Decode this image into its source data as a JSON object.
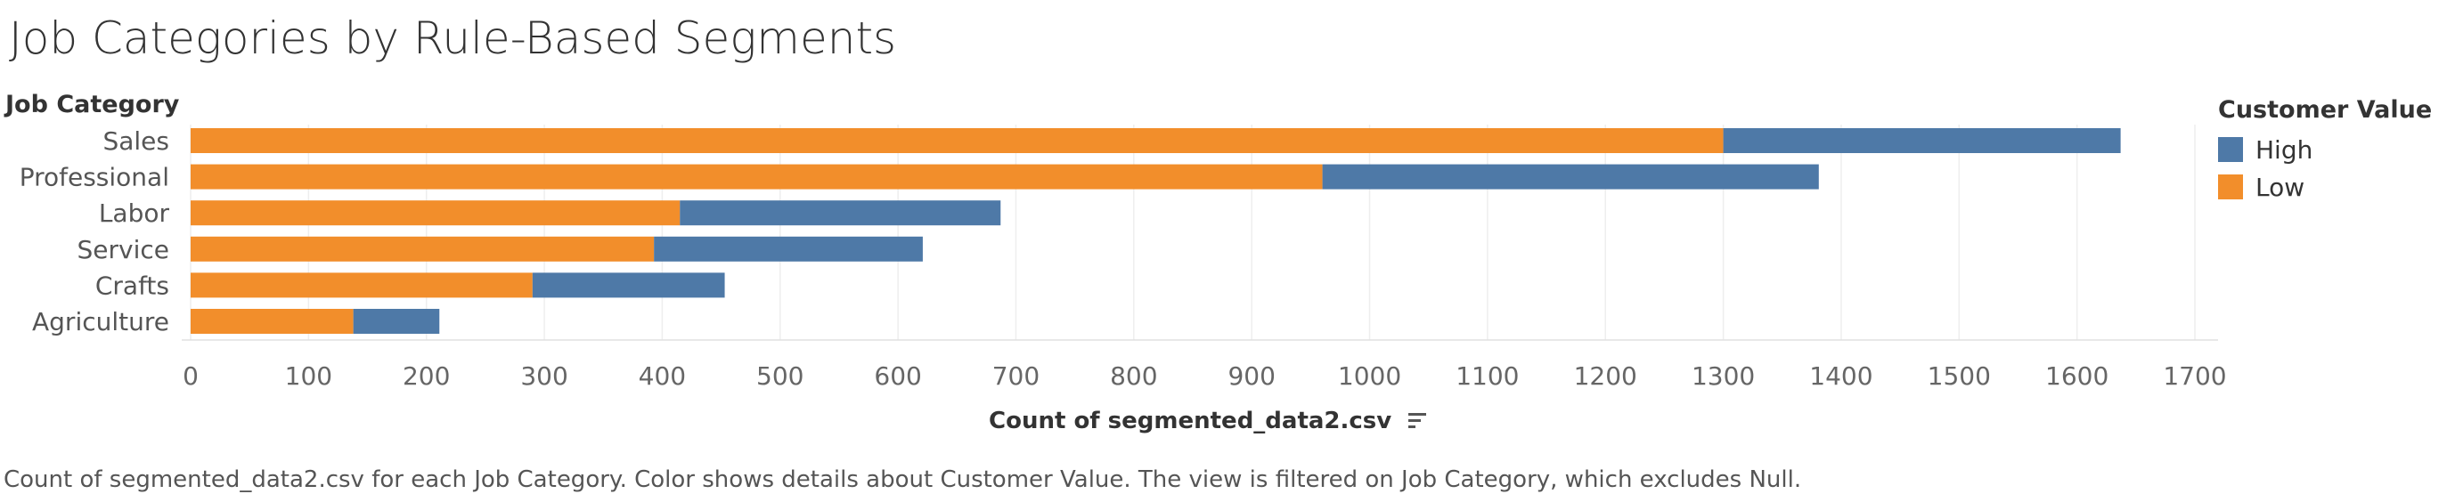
{
  "title": "Job Categories by Rule-Based Segments",
  "row_header": "Job Category",
  "caption": "Count of segmented_data2.csv for each Job Category.  Color shows details about Customer Value. The view is filtered on Job Category, which excludes Null.",
  "legend": {
    "title": "Customer Value",
    "items": [
      {
        "label": "High",
        "color": "#4e79a7"
      },
      {
        "label": "Low",
        "color": "#f28e2b"
      }
    ]
  },
  "chart_data": {
    "type": "bar",
    "orientation": "horizontal",
    "stacked": true,
    "categories": [
      "Sales",
      "Professional",
      "Labor",
      "Service",
      "Crafts",
      "Agriculture"
    ],
    "series": [
      {
        "name": "Low",
        "color": "#f28e2b",
        "values": [
          1300,
          960,
          415,
          393,
          290,
          138
        ]
      },
      {
        "name": "High",
        "color": "#4e79a7",
        "values": [
          337,
          421,
          272,
          228,
          163,
          73
        ]
      }
    ],
    "xlabel": "Count of segmented_data2.csv",
    "ylabel": "Job Category",
    "xlim": [
      0,
      1720
    ],
    "xticks": [
      0,
      100,
      200,
      300,
      400,
      500,
      600,
      700,
      800,
      900,
      1000,
      1100,
      1200,
      1300,
      1400,
      1500,
      1600,
      1700
    ],
    "grid": true,
    "legend_position": "right"
  }
}
